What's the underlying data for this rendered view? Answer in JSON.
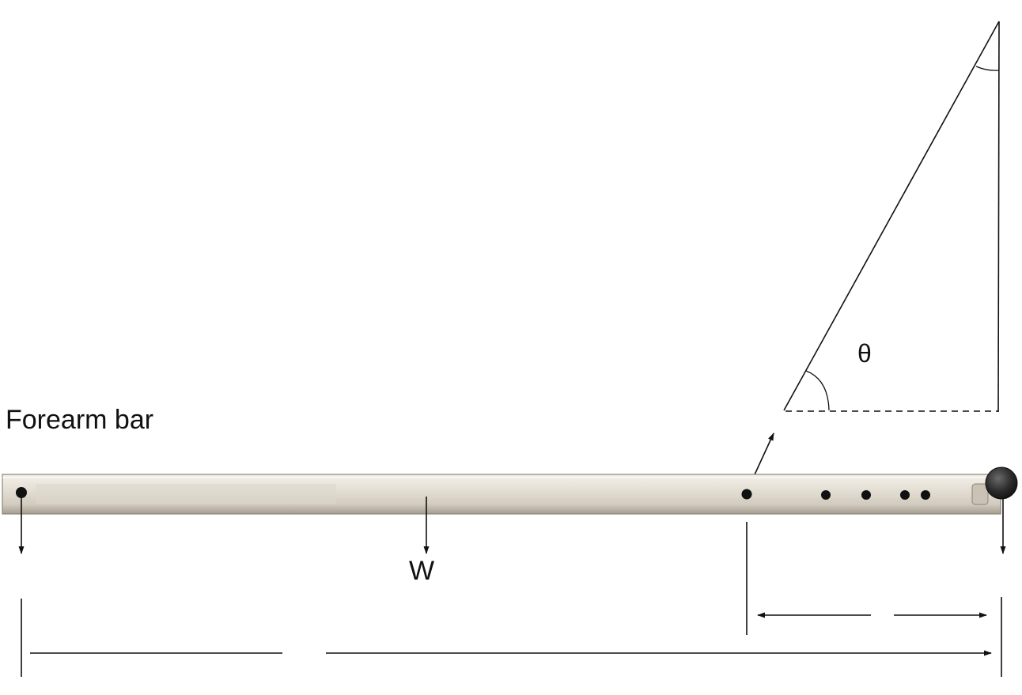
{
  "labels": {
    "forearm_bar": "Forearm bar",
    "weight": "W",
    "angle": "θ"
  },
  "colors": {
    "bar_light": "#e9e4da",
    "bar_mid": "#d4cdc0",
    "bar_dark": "#a69e91",
    "ink": "#111111",
    "knob": "#2b2b2b"
  },
  "icons": {
    "knob": "end-knob-icon",
    "holes": "bar-hole-icon"
  }
}
